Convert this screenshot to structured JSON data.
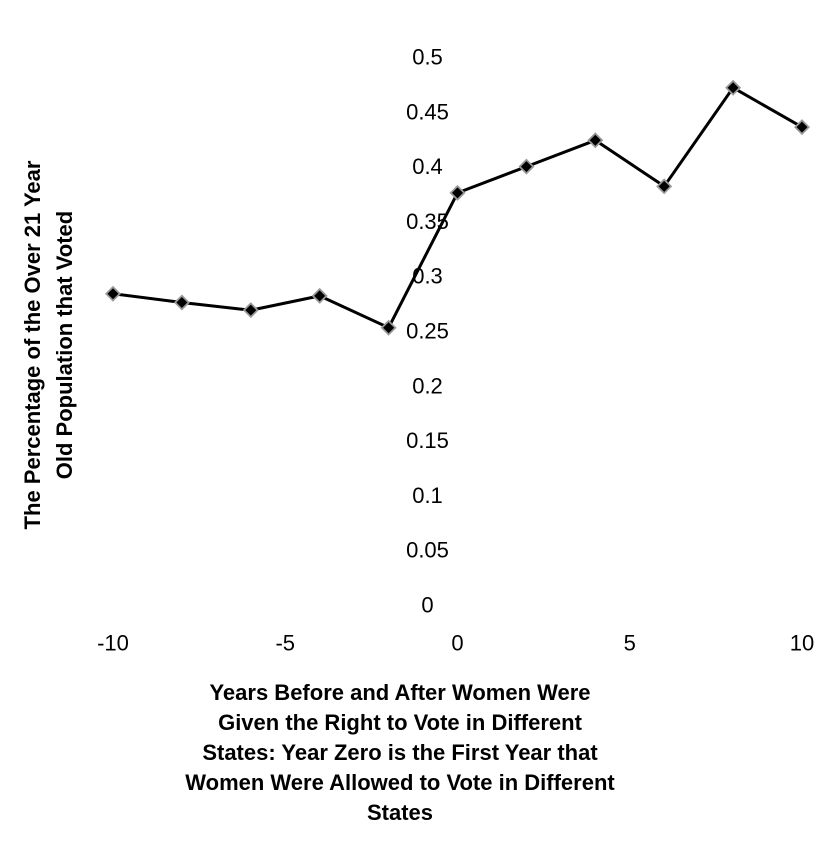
{
  "chart_data": {
    "type": "line",
    "title": "",
    "ylabel_lines": [
      "The Percentage of the Over 21 Year",
      "Old Population that Voted"
    ],
    "xlabel_lines": [
      "Years Before and After Women Were",
      "Given the Right to Vote in Different",
      "States:  Year Zero is the First Year that",
      "Women Were Allowed to Vote in Different",
      "States"
    ],
    "xlim": [
      -10,
      10
    ],
    "ylim": [
      0,
      0.5
    ],
    "x_ticks": [
      -10,
      -5,
      0,
      5,
      10
    ],
    "x_tick_labels": [
      "-10",
      "-5",
      "0",
      "5",
      "10"
    ],
    "y_ticks": [
      0,
      0.05,
      0.1,
      0.15,
      0.2,
      0.25,
      0.3,
      0.35,
      0.4,
      0.45,
      0.5
    ],
    "y_tick_labels": [
      "0",
      "0.05",
      "0.1",
      "0.15",
      "0.2",
      "0.25",
      "0.3",
      "0.35",
      "0.4",
      "0.45",
      "0.5"
    ],
    "grid": false,
    "legend": "none",
    "series": [
      {
        "x": [
          -10,
          -8,
          -6,
          -4,
          -2,
          0,
          2,
          4,
          6,
          8,
          10
        ],
        "y": [
          0.284,
          0.276,
          0.269,
          0.282,
          0.253,
          0.376,
          0.4,
          0.424,
          0.382,
          0.472,
          0.436
        ],
        "color": "#000000",
        "marker": "diamond",
        "marker_shadow_color": "#999999"
      }
    ]
  }
}
